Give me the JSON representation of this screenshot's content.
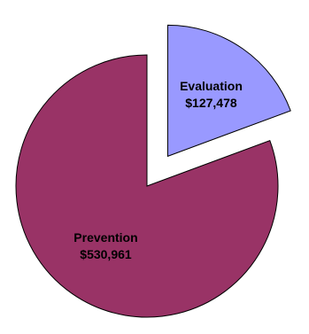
{
  "chart_data": {
    "type": "pie",
    "title": "",
    "slices": [
      {
        "name": "Evaluation",
        "value": 127478,
        "label": "$127,478",
        "color": "#9999FF",
        "exploded": true
      },
      {
        "name": "Prevention",
        "value": 530961,
        "label": "$530,961",
        "color": "#993366",
        "exploded": false
      }
    ],
    "start_angle": "12 o'clock, clockwise",
    "legend": "none"
  }
}
